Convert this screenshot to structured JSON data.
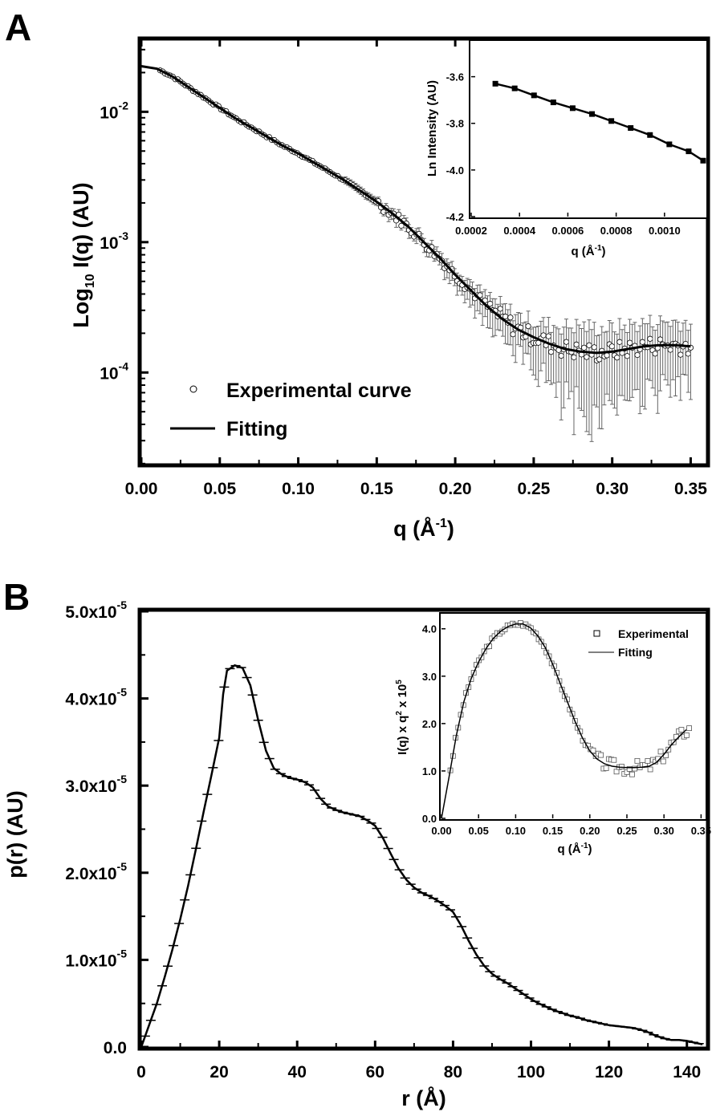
{
  "panels": {
    "a_letter": "A",
    "b_letter": "B"
  },
  "chart_data": [
    {
      "id": "A",
      "type": "scatter",
      "ylabel_pre": "Log",
      "ylabel_sub": "10",
      "ylabel_post": " I(q) (AU)",
      "xlabel_pre": "q (Å",
      "xlabel_sup": "-1",
      "xlabel_post": ")",
      "xlim": [
        0,
        0.36
      ],
      "ylim_log10": [
        -4.7,
        -1.45
      ],
      "yscale": "log",
      "xticks": [
        "0.00",
        "0.05",
        "0.10",
        "0.15",
        "0.20",
        "0.25",
        "0.30",
        "0.35"
      ],
      "yticks": [
        {
          "exp": -2,
          "label": "10",
          "sup": "-2"
        },
        {
          "exp": -3,
          "label": "10",
          "sup": "-3"
        },
        {
          "exp": -4,
          "label": "10",
          "sup": "-4"
        }
      ],
      "legend": {
        "exp": "Experimental curve",
        "fit": "Fitting",
        "position": "bottom-left"
      },
      "fit_curve": {
        "q": [
          0,
          0.01,
          0.02,
          0.03,
          0.04,
          0.05,
          0.06,
          0.07,
          0.08,
          0.09,
          0.1,
          0.11,
          0.12,
          0.13,
          0.14,
          0.15,
          0.16,
          0.17,
          0.18,
          0.19,
          0.2,
          0.21,
          0.22,
          0.23,
          0.24,
          0.25,
          0.26,
          0.27,
          0.28,
          0.29,
          0.3,
          0.31,
          0.32,
          0.33,
          0.34,
          0.35
        ],
        "logI": [
          -1.65,
          -1.67,
          -1.73,
          -1.81,
          -1.89,
          -1.97,
          -2.05,
          -2.12,
          -2.19,
          -2.26,
          -2.32,
          -2.39,
          -2.46,
          -2.53,
          -2.61,
          -2.69,
          -2.78,
          -2.88,
          -3.0,
          -3.12,
          -3.25,
          -3.37,
          -3.49,
          -3.59,
          -3.67,
          -3.73,
          -3.78,
          -3.82,
          -3.84,
          -3.85,
          -3.84,
          -3.82,
          -3.8,
          -3.79,
          -3.79,
          -3.8
        ]
      },
      "errors": {
        "q": [
          0.15,
          0.2,
          0.25,
          0.28,
          0.3,
          0.35
        ],
        "log_up": [
          0.03,
          0.06,
          0.12,
          0.2,
          0.18,
          0.18
        ],
        "log_down": [
          0.03,
          0.08,
          0.22,
          0.55,
          0.38,
          0.35
        ]
      },
      "inset": {
        "type": "line",
        "xlabel_pre": "q (Å",
        "xlabel_sup": "-1",
        "xlabel_post": ")",
        "ylabel": "Ln Intensity (AU)",
        "xlim": [
          0.0002,
          0.00117
        ],
        "ylim": [
          -4.2,
          -3.45
        ],
        "xticks": [
          "0.0002",
          "0.0004",
          "0.0006",
          "0.0008",
          "0.0010"
        ],
        "yticks": [
          "-3.6",
          "-3.8",
          "-4.0",
          "-4.2"
        ],
        "x": [
          0.0003,
          0.00038,
          0.00046,
          0.00054,
          0.00062,
          0.0007,
          0.00078,
          0.00086,
          0.00094,
          0.00102,
          0.0011,
          0.00116
        ],
        "y": [
          -3.63,
          -3.65,
          -3.68,
          -3.71,
          -3.735,
          -3.76,
          -3.79,
          -3.82,
          -3.85,
          -3.89,
          -3.92,
          -3.96
        ]
      }
    },
    {
      "id": "B",
      "type": "line",
      "ylabel": "p(r) (AU)",
      "xlabel": "r (Å)",
      "xlim": [
        0,
        145
      ],
      "ylim": [
        0,
        5e-05
      ],
      "xticks": [
        "0",
        "20",
        "40",
        "60",
        "80",
        "100",
        "120",
        "140"
      ],
      "yticks": [
        {
          "v": 0.0,
          "label": "0.0",
          "sup": ""
        },
        {
          "v": 1e-05,
          "label": "1.0x10",
          "sup": "-5"
        },
        {
          "v": 2e-05,
          "label": "2.0x10",
          "sup": "-5"
        },
        {
          "v": 3e-05,
          "label": "3.0x10",
          "sup": "-5"
        },
        {
          "v": 4e-05,
          "label": "4.0x10",
          "sup": "-5"
        },
        {
          "v": 5e-05,
          "label": "5.0x10",
          "sup": "-5"
        }
      ],
      "x": [
        0,
        2,
        4,
        6,
        8,
        10,
        12,
        14,
        16,
        18,
        20,
        21,
        22,
        24,
        26,
        28,
        30,
        32,
        34,
        36,
        38,
        40,
        42,
        44,
        46,
        48,
        50,
        52,
        54,
        56,
        58,
        60,
        62,
        64,
        66,
        68,
        70,
        72,
        74,
        76,
        78,
        80,
        82,
        84,
        86,
        88,
        90,
        92,
        94,
        96,
        98,
        100,
        102,
        104,
        106,
        108,
        110,
        112,
        114,
        116,
        118,
        120,
        122,
        124,
        126,
        128,
        130,
        132,
        134,
        136,
        138,
        140,
        142,
        144
      ],
      "y": [
        0,
        0.25,
        0.5,
        0.8,
        1.12,
        1.47,
        1.85,
        2.27,
        2.7,
        3.12,
        3.55,
        4.05,
        4.32,
        4.38,
        4.35,
        4.15,
        3.75,
        3.4,
        3.2,
        3.13,
        3.09,
        3.07,
        3.04,
        2.98,
        2.85,
        2.76,
        2.72,
        2.69,
        2.67,
        2.65,
        2.6,
        2.54,
        2.4,
        2.22,
        2.05,
        1.92,
        1.83,
        1.77,
        1.73,
        1.68,
        1.62,
        1.55,
        1.4,
        1.22,
        1.06,
        0.93,
        0.84,
        0.78,
        0.73,
        0.67,
        0.61,
        0.55,
        0.5,
        0.46,
        0.42,
        0.39,
        0.36,
        0.34,
        0.31,
        0.29,
        0.27,
        0.25,
        0.24,
        0.23,
        0.22,
        0.2,
        0.17,
        0.13,
        0.1,
        0.08,
        0.08,
        0.07,
        0.05,
        0.03
      ],
      "y_unit": "1e-5",
      "inset": {
        "type": "scatter",
        "xlabel_pre": "q (Å",
        "xlabel_sup": "-1",
        "xlabel_post": ")",
        "ylabel_pre": "I(q) x q",
        "ylabel_sup": "2",
        "ylabel_mid": " x 10",
        "ylabel_sup2": "5",
        "xlim": [
          0,
          0.355
        ],
        "ylim": [
          0,
          4.3
        ],
        "xticks": [
          "0.00",
          "0.05",
          "0.10",
          "0.15",
          "0.20",
          "0.25",
          "0.30",
          "0.35"
        ],
        "yticks": [
          "0.0",
          "1.0",
          "2.0",
          "3.0",
          "4.0"
        ],
        "legend": {
          "exp": "Experimental",
          "fit": "Fitting",
          "position": "top-right"
        },
        "x": [
          0,
          0.01,
          0.02,
          0.03,
          0.04,
          0.05,
          0.06,
          0.07,
          0.08,
          0.09,
          0.1,
          0.11,
          0.12,
          0.13,
          0.14,
          0.15,
          0.16,
          0.17,
          0.18,
          0.19,
          0.2,
          0.21,
          0.22,
          0.23,
          0.24,
          0.25,
          0.26,
          0.27,
          0.28,
          0.29,
          0.3,
          0.31,
          0.32,
          0.33
        ],
        "y": [
          0,
          0.85,
          1.75,
          2.45,
          2.95,
          3.3,
          3.58,
          3.8,
          3.95,
          4.05,
          4.1,
          4.1,
          4.02,
          3.85,
          3.6,
          3.25,
          2.85,
          2.45,
          2.05,
          1.7,
          1.42,
          1.25,
          1.15,
          1.1,
          1.08,
          1.07,
          1.07,
          1.08,
          1.1,
          1.18,
          1.35,
          1.55,
          1.72,
          1.87
        ]
      }
    }
  ]
}
